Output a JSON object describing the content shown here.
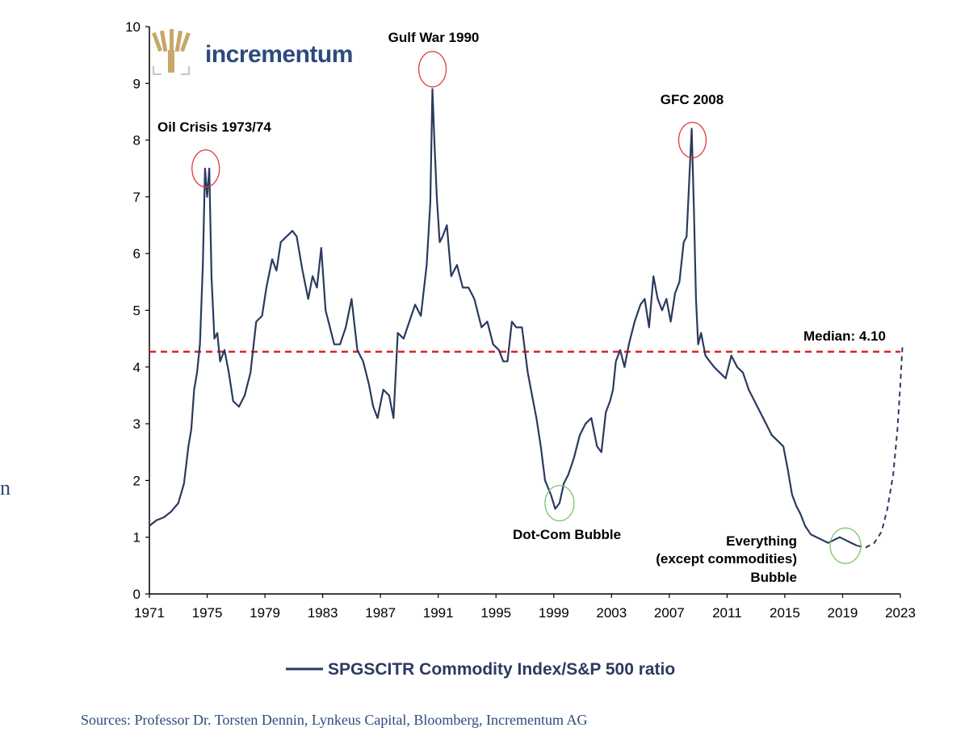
{
  "brand": {
    "name": "incrementum",
    "tree_color": "#c6a868",
    "text_color": "#2e4a7d"
  },
  "source_text": "Sources: Professor Dr. Torsten Dennin, Lynkeus Capital, Bloomberg, Incrementum AG",
  "side_fragment": "n",
  "chart_data": {
    "type": "line",
    "title": "",
    "xlabel": "",
    "ylabel": "",
    "xlim": [
      1971,
      2023
    ],
    "ylim": [
      0,
      10
    ],
    "x_ticks": [
      1971,
      1975,
      1979,
      1983,
      1987,
      1991,
      1995,
      1999,
      2003,
      2007,
      2011,
      2015,
      2019,
      2023
    ],
    "y_ticks": [
      0,
      1,
      2,
      3,
      4,
      5,
      6,
      7,
      8,
      9,
      10
    ],
    "grid": false,
    "legend": {
      "position": "bottom-center",
      "entries": [
        "SPGSCITR Commodity Index/S&P 500 ratio"
      ]
    },
    "colors": {
      "line": "#2b3a5f",
      "median": "#e02020",
      "highlight_peak": "#e03a3a",
      "highlight_trough": "#7cc46a"
    },
    "series": [
      {
        "name": "SPGSCITR Commodity Index/S&P 500 ratio",
        "x": [
          1971.0,
          1971.5,
          1972.0,
          1972.5,
          1973.0,
          1973.4,
          1973.7,
          1973.9,
          1974.1,
          1974.3,
          1974.5,
          1974.7,
          1974.85,
          1975.0,
          1975.15,
          1975.3,
          1975.5,
          1975.7,
          1975.9,
          1976.2,
          1976.5,
          1976.8,
          1977.2,
          1977.6,
          1978.0,
          1978.4,
          1978.8,
          1979.1,
          1979.5,
          1979.8,
          1980.1,
          1980.5,
          1980.9,
          1981.2,
          1981.6,
          1982.0,
          1982.3,
          1982.6,
          1982.9,
          1983.2,
          1983.5,
          1983.8,
          1984.2,
          1984.6,
          1985.0,
          1985.4,
          1985.8,
          1986.2,
          1986.5,
          1986.8,
          1987.2,
          1987.6,
          1987.9,
          1988.2,
          1988.6,
          1989.0,
          1989.4,
          1989.8,
          1990.2,
          1990.45,
          1990.6,
          1990.75,
          1990.9,
          1991.1,
          1991.3,
          1991.6,
          1991.9,
          1992.3,
          1992.7,
          1993.1,
          1993.5,
          1994.0,
          1994.4,
          1994.8,
          1995.2,
          1995.5,
          1995.8,
          1996.1,
          1996.4,
          1996.8,
          1997.2,
          1997.5,
          1997.8,
          1998.1,
          1998.4,
          1998.8,
          1999.1,
          1999.4,
          1999.7,
          2000.0,
          2000.4,
          2000.8,
          2001.2,
          2001.6,
          2002.0,
          2002.3,
          2002.6,
          2002.9,
          2003.1,
          2003.3,
          2003.6,
          2003.9,
          2004.2,
          2004.6,
          2005.0,
          2005.3,
          2005.6,
          2005.9,
          2006.2,
          2006.5,
          2006.8,
          2007.1,
          2007.4,
          2007.7,
          2008.0,
          2008.2,
          2008.4,
          2008.55,
          2008.7,
          2008.85,
          2009.0,
          2009.2,
          2009.5,
          2009.8,
          2010.1,
          2010.5,
          2010.9,
          2011.3,
          2011.7,
          2012.1,
          2012.5,
          2012.9,
          2013.3,
          2013.7,
          2014.1,
          2014.5,
          2014.9,
          2015.2,
          2015.5,
          2015.8,
          2016.1,
          2016.4,
          2016.8,
          2017.2,
          2017.6,
          2018.0,
          2018.4,
          2018.8,
          2019.2,
          2019.6,
          2020.0
        ],
        "y": [
          1.2,
          1.3,
          1.35,
          1.45,
          1.6,
          1.95,
          2.6,
          2.9,
          3.6,
          3.9,
          4.4,
          5.8,
          7.5,
          7.0,
          7.5,
          5.6,
          4.5,
          4.6,
          4.1,
          4.3,
          3.9,
          3.4,
          3.3,
          3.5,
          3.9,
          4.8,
          4.9,
          5.4,
          5.9,
          5.7,
          6.2,
          6.3,
          6.4,
          6.3,
          5.7,
          5.2,
          5.6,
          5.4,
          6.1,
          5.0,
          4.7,
          4.4,
          4.4,
          4.7,
          5.2,
          4.3,
          4.1,
          3.7,
          3.3,
          3.1,
          3.6,
          3.5,
          3.1,
          4.6,
          4.5,
          4.8,
          5.1,
          4.9,
          5.8,
          6.9,
          8.9,
          7.9,
          7.0,
          6.2,
          6.3,
          6.5,
          5.6,
          5.8,
          5.4,
          5.4,
          5.2,
          4.7,
          4.8,
          4.4,
          4.3,
          4.1,
          4.1,
          4.8,
          4.7,
          4.7,
          3.9,
          3.5,
          3.1,
          2.6,
          2.0,
          1.75,
          1.5,
          1.6,
          1.95,
          2.1,
          2.4,
          2.8,
          3.0,
          3.1,
          2.6,
          2.5,
          3.2,
          3.4,
          3.6,
          4.1,
          4.3,
          4.0,
          4.4,
          4.8,
          5.1,
          5.2,
          4.7,
          5.6,
          5.2,
          5.0,
          5.2,
          4.8,
          5.3,
          5.5,
          6.2,
          6.3,
          7.4,
          8.2,
          6.8,
          5.2,
          4.4,
          4.6,
          4.2,
          4.1,
          4.0,
          3.9,
          3.8,
          4.2,
          4.0,
          3.9,
          3.6,
          3.4,
          3.2,
          3.0,
          2.8,
          2.7,
          2.6,
          2.2,
          1.75,
          1.55,
          1.4,
          1.2,
          1.05,
          1.0,
          0.95,
          0.9,
          0.95,
          1.0,
          0.95,
          0.9,
          0.85
        ]
      },
      {
        "name": "projection",
        "style": "dashed",
        "x": [
          2020.0,
          2020.6,
          2021.2,
          2021.7,
          2022.1,
          2022.5,
          2022.8,
          2023.0,
          2023.15
        ],
        "y": [
          0.85,
          0.82,
          0.9,
          1.1,
          1.5,
          2.1,
          2.9,
          3.7,
          4.4
        ]
      }
    ],
    "median": {
      "value": 4.1,
      "label": "Median: 4.10"
    },
    "annotations": [
      {
        "label": "Oil Crisis 1973/74",
        "x": 1974.9,
        "y": 7.5,
        "marker": "peak"
      },
      {
        "label": "Gulf War 1990",
        "x": 1990.6,
        "y": 9.25,
        "marker": "peak"
      },
      {
        "label": "GFC 2008",
        "x": 2008.6,
        "y": 8.0,
        "marker": "peak"
      },
      {
        "label": "Dot-Com Bubble",
        "x": 1999.4,
        "y": 1.6,
        "marker": "trough"
      },
      {
        "lines": [
          "Everything",
          "(except commodities)",
          "Bubble"
        ],
        "x": 2019.2,
        "y": 0.85,
        "marker": "trough"
      }
    ]
  }
}
